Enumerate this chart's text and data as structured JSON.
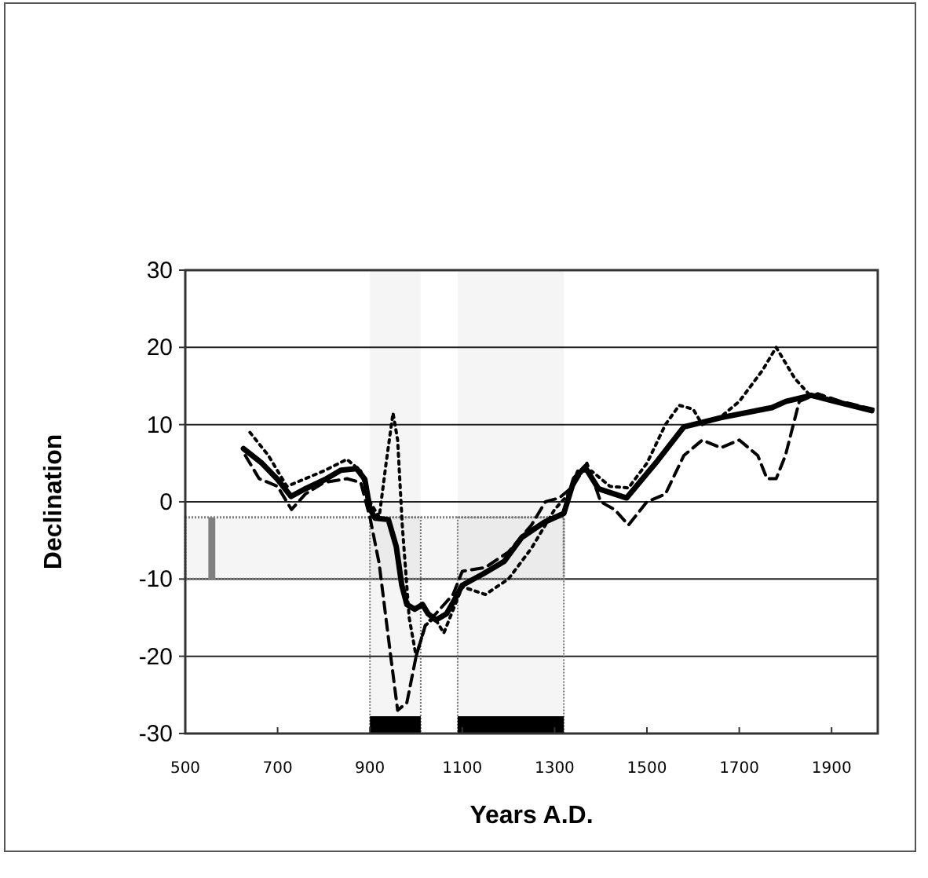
{
  "chart_data": {
    "type": "line",
    "xlabel": "Years A.D.",
    "ylabel": "Declination",
    "xlim": [
      500,
      2000
    ],
    "xticks": [
      500,
      700,
      900,
      1100,
      1300,
      1500,
      1700,
      1900
    ],
    "ylim": [
      -30,
      30
    ],
    "yticks": [
      -30,
      -20,
      -10,
      0,
      10,
      20,
      30
    ],
    "grid": "y",
    "series": [
      {
        "color": "#000000",
        "line_style": "solid",
        "x": [
          626,
          666,
          700,
          729,
          757,
          803,
          837,
          871,
          889,
          900,
          911,
          940,
          957,
          969,
          980,
          997,
          1014,
          1026,
          1043,
          1066,
          1083,
          1100,
          1146,
          1191,
          1229,
          1276,
          1320,
          1343,
          1366,
          1395,
          1456,
          1524,
          1580,
          1660,
          1771,
          1801,
          1856,
          1907,
          1987
        ],
        "values": [
          6.9,
          5,
          2.9,
          0.7,
          1.6,
          2.9,
          4.1,
          4.3,
          2.9,
          -0.9,
          -2.1,
          -2.3,
          -5.8,
          -10.8,
          -13.3,
          -13.9,
          -13.3,
          -14.5,
          -15.3,
          -14.5,
          -12.7,
          -10.8,
          -9.3,
          -7.7,
          -4.6,
          -2.7,
          -1.5,
          3,
          4.5,
          1.7,
          0.5,
          5.4,
          9.7,
          10.9,
          12.2,
          13,
          13.8,
          13,
          11.8
        ]
      },
      {
        "color": "#000000",
        "line_style": "dotted",
        "x": [
          640,
          680,
          720,
          760,
          800,
          850,
          880,
          900,
          920,
          935,
          950,
          960,
          970,
          985,
          1000,
          1020,
          1040,
          1060,
          1080,
          1100,
          1150,
          1200,
          1250,
          1300,
          1330,
          1350,
          1380,
          1420,
          1460,
          1500,
          1540,
          1570,
          1600,
          1620,
          1660,
          1700,
          1750,
          1780,
          1820,
          1850,
          1900,
          1990
        ],
        "values": [
          9,
          6,
          2,
          3,
          4,
          5.5,
          4,
          0,
          -2,
          5,
          11.5,
          8,
          -3,
          -15,
          -20,
          -16,
          -15,
          -17,
          -14,
          -11,
          -12,
          -10,
          -6,
          -1,
          1,
          4,
          4,
          2,
          1.8,
          5,
          10,
          12.5,
          12,
          10,
          11,
          13,
          17,
          20,
          16,
          14,
          13,
          12
        ]
      },
      {
        "color": "#000000",
        "line_style": "dashed",
        "x": [
          630,
          660,
          700,
          730,
          760,
          800,
          850,
          880,
          900,
          920,
          945,
          960,
          980,
          1000,
          1020,
          1050,
          1080,
          1100,
          1150,
          1200,
          1250,
          1280,
          1310,
          1340,
          1370,
          1400,
          1430,
          1460,
          1500,
          1540,
          1580,
          1620,
          1660,
          1700,
          1740,
          1760,
          1780,
          1800,
          1830,
          1870,
          1920,
          1990
        ],
        "values": [
          6,
          3,
          2,
          -1,
          1,
          2.5,
          3,
          2.5,
          -2,
          -8,
          -20,
          -27,
          -26,
          -20,
          -16,
          -14,
          -12,
          -9,
          -8.5,
          -6.5,
          -3,
          0,
          0.5,
          2,
          5,
          0,
          -1,
          -3,
          0,
          1,
          6,
          8,
          7,
          8,
          6,
          3,
          3,
          6,
          13,
          14,
          13,
          12
        ]
      }
    ],
    "bands": [
      {
        "axis": "y",
        "from": -10,
        "to": -2,
        "color": "#808080"
      },
      {
        "axis": "x",
        "from": 900,
        "to": 1010,
        "color": "#000000"
      },
      {
        "axis": "x",
        "from": 1090,
        "to": 1320,
        "color": "#000000"
      }
    ]
  }
}
